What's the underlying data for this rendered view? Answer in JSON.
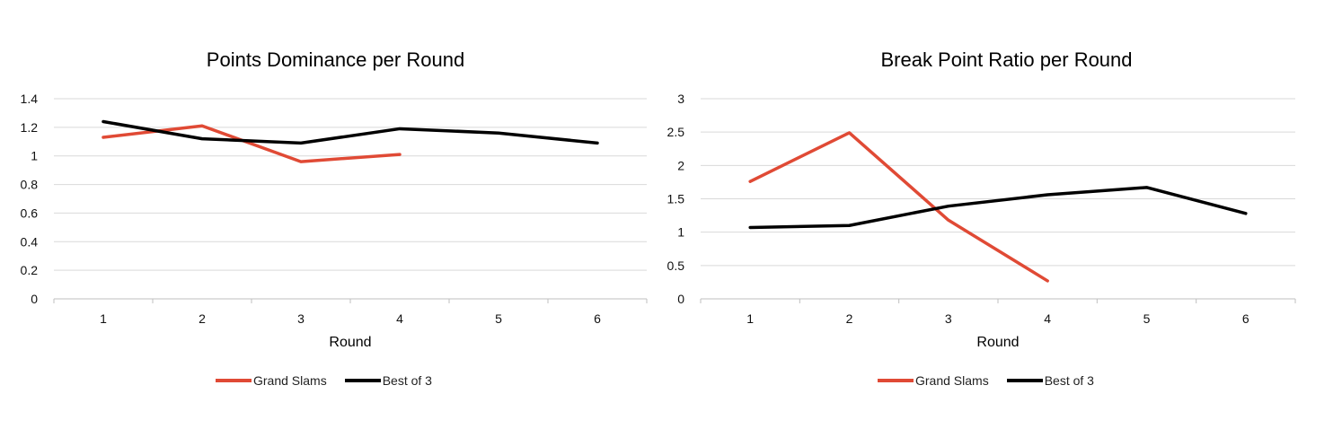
{
  "chart_data": [
    {
      "type": "line",
      "title": "Points Dominance per Round",
      "xlabel": "Round",
      "ylabel": "",
      "categories": [
        "1",
        "2",
        "3",
        "4",
        "5",
        "6"
      ],
      "ylim": [
        0,
        1.4
      ],
      "yticks": [
        "0",
        "0.2",
        "0.4",
        "0.6",
        "0.8",
        "1",
        "1.2",
        "1.4"
      ],
      "grid": true,
      "legend": "bottom",
      "series": [
        {
          "name": "Grand Slams",
          "color": "#e04a35",
          "values": [
            1.13,
            1.21,
            0.96,
            1.01,
            null,
            null
          ]
        },
        {
          "name": "Best of 3",
          "color": "#000000",
          "values": [
            1.24,
            1.12,
            1.09,
            1.19,
            1.16,
            1.09
          ]
        }
      ]
    },
    {
      "type": "line",
      "title": "Break Point Ratio per Round",
      "xlabel": "Round",
      "ylabel": "",
      "categories": [
        "1",
        "2",
        "3",
        "4",
        "5",
        "6"
      ],
      "ylim": [
        0,
        3
      ],
      "yticks": [
        "0",
        "0.5",
        "1",
        "1.5",
        "2",
        "2.5",
        "3"
      ],
      "grid": true,
      "legend": "bottom",
      "series": [
        {
          "name": "Grand Slams",
          "color": "#e04a35",
          "values": [
            1.76,
            2.49,
            1.18,
            0.27,
            null,
            null
          ]
        },
        {
          "name": "Best of 3",
          "color": "#000000",
          "values": [
            1.07,
            1.1,
            1.39,
            1.56,
            1.67,
            1.28
          ]
        }
      ]
    }
  ]
}
